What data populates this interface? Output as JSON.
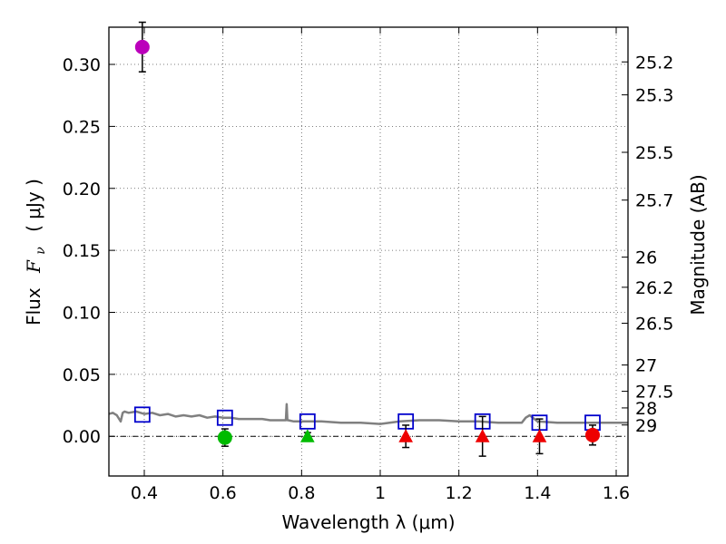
{
  "chart_data": {
    "type": "scatter",
    "title": "",
    "xlabel": "Wavelength  λ (μm)",
    "ylabel_left": {
      "flux_word": "Flux",
      "symbol": "F",
      "subscript": "ν",
      "unit": "( μJy )"
    },
    "ylabel_right": "Magnitude (AB)",
    "xlim": [
      0.31,
      1.63
    ],
    "ylim": [
      -0.032,
      0.33
    ],
    "grid": true,
    "x_ticks": [
      {
        "value": 0.4,
        "label": "0.4"
      },
      {
        "value": 0.6,
        "label": "0.6"
      },
      {
        "value": 0.8,
        "label": "0.8"
      },
      {
        "value": 1.0,
        "label": "1"
      },
      {
        "value": 1.2,
        "label": "1.2"
      },
      {
        "value": 1.4,
        "label": "1.4"
      },
      {
        "value": 1.6,
        "label": "1.6"
      }
    ],
    "y_ticks": [
      {
        "value": 0.0,
        "label": "0.00"
      },
      {
        "value": 0.05,
        "label": "0.05"
      },
      {
        "value": 0.1,
        "label": "0.10"
      },
      {
        "value": 0.15,
        "label": "0.15"
      },
      {
        "value": 0.2,
        "label": "0.20"
      },
      {
        "value": 0.25,
        "label": "0.25"
      },
      {
        "value": 0.3,
        "label": "0.30"
      }
    ],
    "magnitude_ticks": [
      {
        "value": 25.2,
        "label": "25.2"
      },
      {
        "value": 25.3,
        "label": "25.3"
      },
      {
        "value": 25.5,
        "label": "25.5"
      },
      {
        "value": 25.7,
        "label": "25.7"
      },
      {
        "value": 26,
        "label": "26"
      },
      {
        "value": 26.2,
        "label": "26.2"
      },
      {
        "value": 26.5,
        "label": "26.5"
      },
      {
        "value": 27,
        "label": "27"
      },
      {
        "value": 27.5,
        "label": "27.5"
      },
      {
        "value": 28,
        "label": "28"
      },
      {
        "value": 29,
        "label": "29"
      }
    ],
    "series": [
      {
        "name": "model spectrum",
        "kind": "line",
        "color": "#808080",
        "x": [
          0.31,
          0.32,
          0.33,
          0.34,
          0.345,
          0.35,
          0.36,
          0.38,
          0.4,
          0.42,
          0.44,
          0.46,
          0.48,
          0.5,
          0.52,
          0.54,
          0.56,
          0.58,
          0.6,
          0.62,
          0.64,
          0.66,
          0.68,
          0.7,
          0.72,
          0.74,
          0.755,
          0.76,
          0.762,
          0.764,
          0.766,
          0.78,
          0.8,
          0.85,
          0.9,
          0.95,
          1.0,
          1.05,
          1.1,
          1.15,
          1.2,
          1.25,
          1.3,
          1.33,
          1.36,
          1.37,
          1.38,
          1.4,
          1.45,
          1.5,
          1.55,
          1.6,
          1.63
        ],
        "y": [
          0.018,
          0.019,
          0.017,
          0.012,
          0.019,
          0.02,
          0.019,
          0.02,
          0.018,
          0.019,
          0.017,
          0.018,
          0.016,
          0.017,
          0.016,
          0.017,
          0.015,
          0.016,
          0.015,
          0.015,
          0.014,
          0.014,
          0.014,
          0.014,
          0.013,
          0.013,
          0.013,
          0.013,
          0.026,
          0.013,
          0.013,
          0.012,
          0.012,
          0.012,
          0.011,
          0.011,
          0.01,
          0.012,
          0.013,
          0.013,
          0.012,
          0.012,
          0.011,
          0.011,
          0.011,
          0.015,
          0.017,
          0.012,
          0.011,
          0.011,
          0.011,
          0.011,
          0.011
        ]
      },
      {
        "name": "model photometry",
        "kind": "marker",
        "marker": "open-square",
        "color": "#0000cc",
        "x": [
          0.395,
          0.605,
          0.815,
          1.065,
          1.26,
          1.405,
          1.54
        ],
        "y": [
          0.0175,
          0.015,
          0.012,
          0.012,
          0.012,
          0.011,
          0.011
        ]
      },
      {
        "name": "detections",
        "kind": "marker",
        "marker": "circle",
        "points": [
          {
            "x": 0.395,
            "y": 0.314,
            "err": 0.02,
            "color": "#bb00bb"
          },
          {
            "x": 0.605,
            "y": -0.001,
            "err": 0.007,
            "color": "#00bb00"
          },
          {
            "x": 1.54,
            "y": 0.001,
            "err": 0.008,
            "color": "#ee0000"
          }
        ]
      },
      {
        "name": "upper limits",
        "kind": "marker",
        "marker": "triangle-up",
        "points": [
          {
            "x": 0.815,
            "y": 0.0,
            "err": 0.003,
            "color": "#00bb00"
          },
          {
            "x": 1.065,
            "y": 0.0,
            "err": 0.009,
            "color": "#ee0000"
          },
          {
            "x": 1.26,
            "y": 0.0,
            "err": 0.016,
            "color": "#ee0000"
          },
          {
            "x": 1.405,
            "y": 0.0,
            "err": 0.014,
            "color": "#ee0000"
          }
        ]
      }
    ]
  }
}
